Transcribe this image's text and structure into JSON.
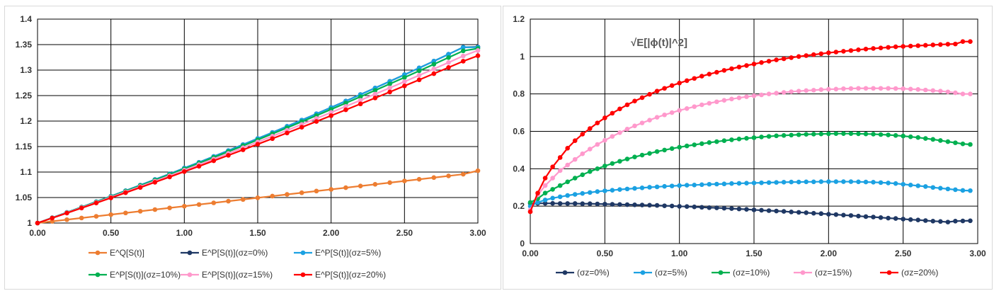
{
  "chart_data": [
    {
      "type": "line",
      "title": "",
      "xlabel": "",
      "ylabel": "",
      "xlim": [
        0,
        3
      ],
      "ylim": [
        1,
        1.4
      ],
      "xticks": [
        "0.00",
        "0.50",
        "1.00",
        "1.50",
        "2.00",
        "2.50",
        "3.00"
      ],
      "yticks": [
        "1",
        "1.05",
        "1.1",
        "1.15",
        "1.2",
        "1.25",
        "1.3",
        "1.35",
        "1.4"
      ],
      "grid": true,
      "legend_position": "bottom",
      "x": [
        0,
        0.1,
        0.2,
        0.3,
        0.4,
        0.5,
        0.6,
        0.7,
        0.8,
        0.9,
        1.0,
        1.1,
        1.2,
        1.3,
        1.4,
        1.5,
        1.6,
        1.7,
        1.8,
        1.9,
        2.0,
        2.1,
        2.2,
        2.3,
        2.4,
        2.5,
        2.6,
        2.7,
        2.8,
        2.9,
        3.0
      ],
      "series": [
        {
          "name": "E^Q[S(t)]",
          "color": "#ED7D31",
          "values": [
            1,
            1.0033,
            1.0066,
            1.0099,
            1.0132,
            1.0165,
            1.0198,
            1.0231,
            1.0264,
            1.0297,
            1.033,
            1.0363,
            1.0396,
            1.0429,
            1.0462,
            1.0495,
            1.0528,
            1.0561,
            1.0594,
            1.0627,
            1.066,
            1.0693,
            1.0726,
            1.0759,
            1.0792,
            1.0825,
            1.0858,
            1.0891,
            1.0924,
            1.0957,
            1.1026
          ]
        },
        {
          "name": "E^P[S(t)](σz=0%)",
          "color": "#1F3864",
          "values": [
            1,
            1.0103,
            1.0207,
            1.0312,
            1.0418,
            1.0525,
            1.0633,
            1.0743,
            1.0853,
            1.0964,
            1.1077,
            1.119,
            1.1305,
            1.1421,
            1.1538,
            1.1657,
            1.1776,
            1.1897,
            1.2019,
            1.2143,
            1.2267,
            1.2393,
            1.2521,
            1.2649,
            1.2779,
            1.291,
            1.3042,
            1.3176,
            1.3311,
            1.3448,
            1.3455
          ]
        },
        {
          "name": "E^P[S(t)](σz=5%)",
          "color": "#1BA1E2",
          "values": [
            1,
            1.0103,
            1.0207,
            1.0312,
            1.0418,
            1.0525,
            1.0633,
            1.0743,
            1.0853,
            1.0964,
            1.1077,
            1.119,
            1.1305,
            1.1421,
            1.1538,
            1.1657,
            1.1776,
            1.1897,
            1.2019,
            1.2143,
            1.2267,
            1.2393,
            1.2521,
            1.2649,
            1.2779,
            1.291,
            1.3042,
            1.3176,
            1.3311,
            1.3448,
            1.3448
          ]
        },
        {
          "name": "E^P[S(t)](σz=10%)",
          "color": "#00B050",
          "values": [
            1,
            1.0101,
            1.0204,
            1.0308,
            1.0412,
            1.0518,
            1.0625,
            1.0733,
            1.0841,
            1.0951,
            1.1062,
            1.1174,
            1.1287,
            1.1401,
            1.1516,
            1.1632,
            1.175,
            1.1868,
            1.1988,
            1.2108,
            1.223,
            1.2353,
            1.2477,
            1.2602,
            1.2729,
            1.2856,
            1.2985,
            1.3115,
            1.3246,
            1.3378,
            1.3425
          ]
        },
        {
          "name": "E^P[S(t)](σz=15%)",
          "color": "#FF99CC",
          "values": [
            1,
            1.0099,
            1.02,
            1.0301,
            1.0403,
            1.0506,
            1.061,
            1.0715,
            1.0821,
            1.0928,
            1.1036,
            1.1145,
            1.1254,
            1.1365,
            1.1477,
            1.159,
            1.1704,
            1.1818,
            1.1934,
            1.2051,
            1.2169,
            1.2288,
            1.2408,
            1.2529,
            1.2651,
            1.2774,
            1.2898,
            1.3023,
            1.3149,
            1.3277,
            1.3385
          ]
        },
        {
          "name": "E^P[S(t)](σz=20%)",
          "color": "#FF0000",
          "values": [
            1,
            1.0097,
            1.0195,
            1.0294,
            1.0393,
            1.0493,
            1.0595,
            1.0697,
            1.08,
            1.0904,
            1.1009,
            1.1114,
            1.1221,
            1.1328,
            1.1437,
            1.1546,
            1.1656,
            1.1767,
            1.1879,
            1.1992,
            1.2106,
            1.2221,
            1.2337,
            1.2453,
            1.2571,
            1.269,
            1.2809,
            1.293,
            1.3051,
            1.3174,
            1.3282
          ]
        }
      ]
    },
    {
      "type": "line",
      "title": "",
      "annotation": "√E[|ϕ(t)|^2]",
      "xlabel": "",
      "ylabel": "",
      "xlim": [
        0,
        3
      ],
      "ylim": [
        0,
        1.2
      ],
      "xticks": [
        "0.00",
        "0.50",
        "1.00",
        "1.50",
        "2.00",
        "2.50",
        "3.00"
      ],
      "yticks": [
        "0",
        "0.2",
        "0.4",
        "0.6",
        "0.8",
        "1",
        "1.2"
      ],
      "grid": true,
      "legend_position": "bottom",
      "x": [
        0,
        0.05,
        0.1,
        0.15,
        0.2,
        0.25,
        0.3,
        0.35,
        0.4,
        0.45,
        0.5,
        0.55,
        0.6,
        0.65,
        0.7,
        0.75,
        0.8,
        0.85,
        0.9,
        0.95,
        1.0,
        1.05,
        1.1,
        1.15,
        1.2,
        1.25,
        1.3,
        1.35,
        1.4,
        1.45,
        1.5,
        1.55,
        1.6,
        1.65,
        1.7,
        1.75,
        1.8,
        1.85,
        1.9,
        1.95,
        2.0,
        2.05,
        2.1,
        2.15,
        2.2,
        2.25,
        2.3,
        2.35,
        2.4,
        2.45,
        2.5,
        2.55,
        2.6,
        2.65,
        2.7,
        2.75,
        2.8,
        2.85,
        2.9,
        2.95
      ],
      "series": [
        {
          "name": "(σz=0%)",
          "color": "#1F3864",
          "values": [
            0.215,
            0.215,
            0.215,
            0.215,
            0.214,
            0.214,
            0.214,
            0.213,
            0.213,
            0.212,
            0.211,
            0.21,
            0.209,
            0.208,
            0.207,
            0.206,
            0.205,
            0.204,
            0.202,
            0.201,
            0.199,
            0.198,
            0.196,
            0.194,
            0.192,
            0.191,
            0.189,
            0.187,
            0.185,
            0.183,
            0.18,
            0.178,
            0.176,
            0.174,
            0.172,
            0.169,
            0.167,
            0.165,
            0.162,
            0.16,
            0.157,
            0.155,
            0.152,
            0.15,
            0.147,
            0.144,
            0.142,
            0.139,
            0.136,
            0.134,
            0.131,
            0.128,
            0.126,
            0.123,
            0.12,
            0.118,
            0.115,
            0.12,
            0.121,
            0.122
          ]
        },
        {
          "name": "(σz=5%)",
          "color": "#1BA1E2",
          "values": [
            0.2,
            0.22,
            0.233,
            0.243,
            0.25,
            0.257,
            0.263,
            0.268,
            0.273,
            0.278,
            0.282,
            0.285,
            0.289,
            0.292,
            0.295,
            0.298,
            0.301,
            0.303,
            0.306,
            0.308,
            0.31,
            0.312,
            0.313,
            0.315,
            0.317,
            0.318,
            0.319,
            0.321,
            0.322,
            0.323,
            0.324,
            0.325,
            0.326,
            0.327,
            0.328,
            0.329,
            0.329,
            0.33,
            0.33,
            0.331,
            0.331,
            0.331,
            0.331,
            0.331,
            0.33,
            0.329,
            0.328,
            0.326,
            0.324,
            0.321,
            0.317,
            0.313,
            0.309,
            0.305,
            0.3,
            0.296,
            0.292,
            0.288,
            0.284,
            0.283
          ]
        },
        {
          "name": "(σz=10%)",
          "color": "#00B050",
          "values": [
            0.22,
            0.24,
            0.27,
            0.29,
            0.31,
            0.33,
            0.35,
            0.368,
            0.385,
            0.4,
            0.415,
            0.428,
            0.44,
            0.452,
            0.463,
            0.473,
            0.482,
            0.492,
            0.5,
            0.508,
            0.515,
            0.522,
            0.528,
            0.534,
            0.54,
            0.545,
            0.55,
            0.555,
            0.559,
            0.563,
            0.566,
            0.57,
            0.573,
            0.576,
            0.578,
            0.58,
            0.582,
            0.584,
            0.585,
            0.586,
            0.587,
            0.588,
            0.588,
            0.588,
            0.587,
            0.586,
            0.585,
            0.583,
            0.581,
            0.578,
            0.575,
            0.571,
            0.567,
            0.562,
            0.557,
            0.551,
            0.545,
            0.539,
            0.533,
            0.53
          ]
        },
        {
          "name": "(σz=15%)",
          "color": "#FF99CC",
          "values": [
            0.18,
            0.26,
            0.31,
            0.35,
            0.39,
            0.42,
            0.45,
            0.48,
            0.505,
            0.53,
            0.552,
            0.573,
            0.593,
            0.612,
            0.629,
            0.645,
            0.66,
            0.675,
            0.688,
            0.7,
            0.712,
            0.722,
            0.732,
            0.742,
            0.75,
            0.758,
            0.766,
            0.773,
            0.779,
            0.785,
            0.79,
            0.795,
            0.8,
            0.804,
            0.808,
            0.812,
            0.815,
            0.818,
            0.82,
            0.823,
            0.825,
            0.826,
            0.828,
            0.829,
            0.83,
            0.83,
            0.83,
            0.83,
            0.83,
            0.829,
            0.828,
            0.826,
            0.824,
            0.821,
            0.818,
            0.815,
            0.811,
            0.806,
            0.8,
            0.8
          ]
        },
        {
          "name": "(σz=20%)",
          "color": "#FF0000",
          "values": [
            0.17,
            0.27,
            0.35,
            0.41,
            0.46,
            0.51,
            0.55,
            0.585,
            0.615,
            0.645,
            0.672,
            0.697,
            0.72,
            0.742,
            0.762,
            0.78,
            0.798,
            0.815,
            0.83,
            0.845,
            0.858,
            0.871,
            0.883,
            0.895,
            0.906,
            0.916,
            0.926,
            0.935,
            0.944,
            0.952,
            0.96,
            0.968,
            0.975,
            0.982,
            0.988,
            0.994,
            1.0,
            1.005,
            1.01,
            1.015,
            1.02,
            1.024,
            1.028,
            1.032,
            1.036,
            1.04,
            1.043,
            1.046,
            1.049,
            1.052,
            1.054,
            1.056,
            1.058,
            1.06,
            1.062,
            1.064,
            1.066,
            1.067,
            1.08,
            1.08
          ]
        }
      ]
    }
  ]
}
